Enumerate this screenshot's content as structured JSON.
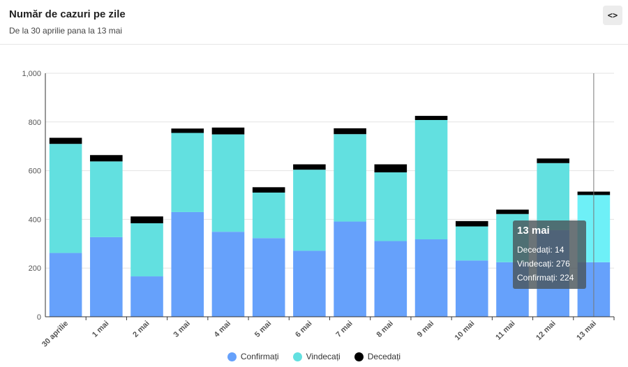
{
  "header": {
    "title": "Număr de cazuri pe zile",
    "subtitle": "De la 30 aprilie pana la 13 mai",
    "embed_label": "<>"
  },
  "chart_data": {
    "type": "bar",
    "stacked": true,
    "categories": [
      "30 aprilie",
      "1 mai",
      "2 mai",
      "3 mai",
      "4 mai",
      "5 mai",
      "6 mai",
      "7 mai",
      "8 mai",
      "9 mai",
      "10 mai",
      "11 mai",
      "12 mai",
      "13 mai"
    ],
    "series": [
      {
        "name": "Confirmați",
        "color": "#66a1fb",
        "highlight": "#66a1fb",
        "values": [
          262,
          327,
          166,
          430,
          349,
          323,
          271,
          391,
          311,
          318,
          231,
          224,
          356,
          224
        ]
      },
      {
        "name": "Vindecați",
        "color": "#62e0e0",
        "highlight": "#6ef0f7",
        "values": [
          448,
          311,
          218,
          325,
          400,
          187,
          333,
          359,
          282,
          490,
          140,
          198,
          275,
          276
        ]
      },
      {
        "name": "Decedați",
        "color": "#000000",
        "highlight": "#000000",
        "values": [
          25,
          26,
          28,
          18,
          28,
          22,
          22,
          24,
          33,
          17,
          22,
          18,
          19,
          14
        ]
      }
    ],
    "y_ticks": [
      "0",
      "200",
      "400",
      "600",
      "800",
      "1,000"
    ],
    "ylim": [
      0,
      1000
    ],
    "grid": true,
    "legend_position": "bottom-center",
    "highlighted_index": 13
  },
  "tooltip": {
    "title": "13 mai",
    "lines": [
      "Decedați: 14",
      "Vindecați: 276",
      "Confirmați: 224"
    ]
  }
}
